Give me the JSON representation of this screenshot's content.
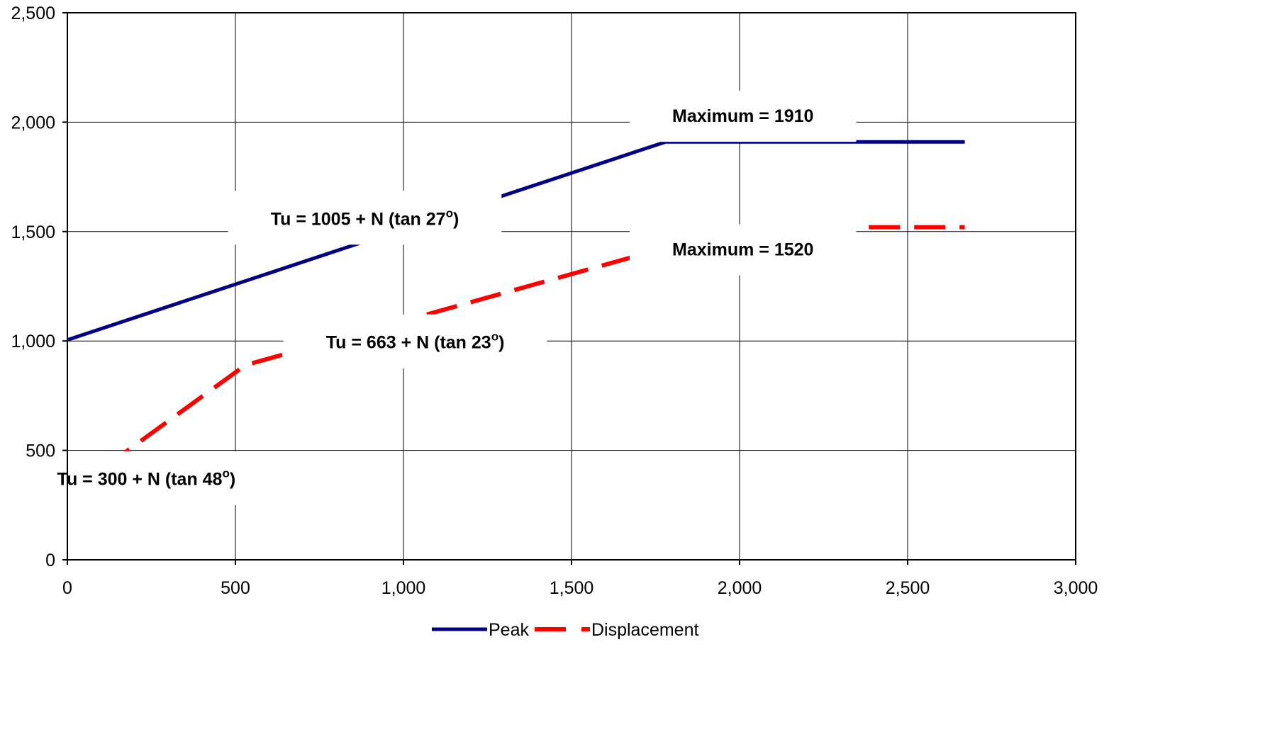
{
  "chart_data": {
    "type": "line",
    "title": "",
    "xlabel": "",
    "ylabel": "",
    "xlim": [
      0,
      3000
    ],
    "ylim": [
      0,
      2500
    ],
    "x_ticks": [
      0,
      500,
      1000,
      1500,
      2000,
      2500,
      3000
    ],
    "x_tick_labels": [
      "0",
      "500",
      "1,000",
      "1,500",
      "2,000",
      "2,500",
      "3,000"
    ],
    "y_ticks": [
      0,
      500,
      1000,
      1500,
      2000,
      2500
    ],
    "y_tick_labels": [
      "0",
      "500",
      "1,000",
      "1,500",
      "2,000",
      "2,500"
    ],
    "grid": true,
    "legend_position": "bottom",
    "series": [
      {
        "name": "Peak",
        "color": "#000080",
        "line_style": "solid",
        "points": [
          [
            0,
            1005
          ],
          [
            1780,
            1910
          ],
          [
            2670,
            1910
          ]
        ]
      },
      {
        "name": "Displacement",
        "color": "#ff0000",
        "line_style": "dashed",
        "points": [
          [
            0,
            300
          ],
          [
            530,
            890
          ],
          [
            2000,
            1520
          ],
          [
            2670,
            1520
          ]
        ]
      }
    ],
    "annotations": [
      {
        "main": "Tu = 1005 + N (tan 27",
        "sup": "o",
        "end": ")",
        "x": 885,
        "y": 1560
      },
      {
        "main": "Maximum = 1910",
        "sup": "",
        "end": "",
        "x": 2010,
        "y": 2030
      },
      {
        "main": "Maximum = 1520",
        "sup": "",
        "end": "",
        "x": 2010,
        "y": 1420
      },
      {
        "main": "Tu = 663 + N (tan 23",
        "sup": "o",
        "end": ")",
        "x": 1035,
        "y": 995
      },
      {
        "main": "Tu = 300 + N (tan 48",
        "sup": "o",
        "end": ")",
        "x": 235,
        "y": 370
      }
    ]
  }
}
